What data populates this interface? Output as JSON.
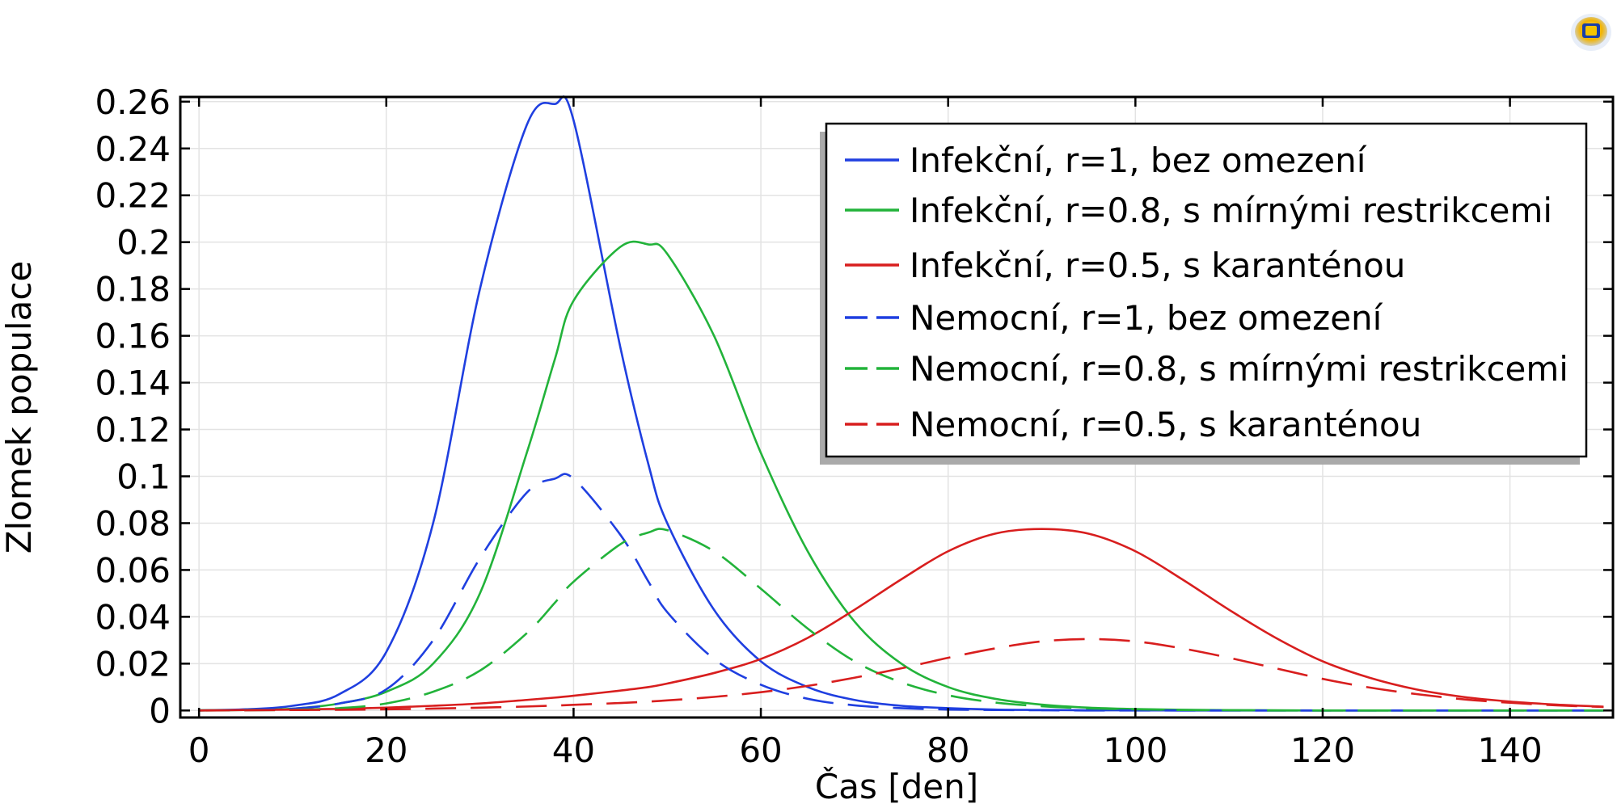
{
  "chart_data": {
    "type": "line",
    "title": "",
    "xlabel": "Čas [den]",
    "ylabel": "Zlomek populace",
    "xlim": [
      -2,
      151
    ],
    "ylim": [
      -0.003,
      0.262
    ],
    "x_ticks": [
      0,
      20,
      40,
      60,
      80,
      100,
      120,
      140
    ],
    "y_ticks": [
      0,
      0.02,
      0.04,
      0.06,
      0.08,
      0.1,
      0.12,
      0.14,
      0.16,
      0.18,
      0.2,
      0.22,
      0.24,
      0.26
    ],
    "x_tick_labels": [
      "0",
      "20",
      "40",
      "60",
      "80",
      "100",
      "120",
      "140"
    ],
    "y_tick_labels": [
      "0",
      "0.02",
      "0.04",
      "0.06",
      "0.08",
      "0.1",
      "0.12",
      "0.14",
      "0.16",
      "0.18",
      "0.2",
      "0.22",
      "0.24",
      "0.26"
    ],
    "grid": true,
    "legend_position": "top-right",
    "x": [
      0,
      5,
      10,
      15,
      20,
      25,
      30,
      35,
      38,
      40,
      45,
      48,
      50,
      55,
      60,
      65,
      70,
      75,
      80,
      85,
      90,
      95,
      100,
      105,
      110,
      115,
      120,
      125,
      130,
      135,
      140,
      145,
      150
    ],
    "series": [
      {
        "name": "Infekční, r=1, bez omezení",
        "color": "#1f3fe0",
        "dash": "solid",
        "values": [
          0.0001,
          0.0005,
          0.002,
          0.007,
          0.025,
          0.08,
          0.18,
          0.25,
          0.259,
          0.252,
          0.155,
          0.105,
          0.08,
          0.043,
          0.021,
          0.01,
          0.0045,
          0.002,
          0.001,
          0.0004,
          0.0002,
          0.0001,
          5e-05,
          0,
          0,
          0,
          0,
          0,
          0,
          0,
          0,
          0,
          0
        ]
      },
      {
        "name": "Infekční, r=0.8, s mírnými restrikcemi",
        "color": "#22b33a",
        "dash": "solid",
        "values": [
          0.0001,
          0.0002,
          0.0008,
          0.003,
          0.008,
          0.02,
          0.05,
          0.11,
          0.15,
          0.175,
          0.198,
          0.199,
          0.195,
          0.16,
          0.11,
          0.068,
          0.038,
          0.02,
          0.01,
          0.005,
          0.0025,
          0.0012,
          0.0006,
          0.0003,
          0.00015,
          0.0001,
          0,
          0,
          0,
          0,
          0,
          0,
          0
        ]
      },
      {
        "name": "Infekční, r=0.5, s karanténou",
        "color": "#d81e1e",
        "dash": "solid",
        "values": [
          0,
          0.0002,
          0.0004,
          0.0007,
          0.0012,
          0.002,
          0.003,
          0.0045,
          0.0055,
          0.0063,
          0.0085,
          0.01,
          0.0115,
          0.016,
          0.022,
          0.031,
          0.043,
          0.056,
          0.068,
          0.0755,
          0.0775,
          0.0755,
          0.068,
          0.056,
          0.043,
          0.031,
          0.021,
          0.014,
          0.009,
          0.0058,
          0.0038,
          0.0025,
          0.0016
        ]
      },
      {
        "name": "Nemocní, r=1, bez omezení",
        "color": "#1f3fe0",
        "dash": "dashed",
        "values": [
          0,
          0.0002,
          0.0008,
          0.003,
          0.009,
          0.03,
          0.065,
          0.093,
          0.099,
          0.099,
          0.075,
          0.055,
          0.042,
          0.022,
          0.011,
          0.005,
          0.0022,
          0.001,
          0.0004,
          0.0002,
          0.0001,
          0,
          0,
          0,
          0,
          0,
          0,
          0,
          0,
          0,
          0,
          0,
          0
        ]
      },
      {
        "name": "Nemocní, r=0.8, s mírnými restrikcemi",
        "color": "#22b33a",
        "dash": "dashed",
        "values": [
          0,
          0.0001,
          0.0003,
          0.001,
          0.003,
          0.008,
          0.017,
          0.033,
          0.046,
          0.055,
          0.071,
          0.076,
          0.077,
          0.068,
          0.052,
          0.035,
          0.021,
          0.012,
          0.0065,
          0.0034,
          0.0018,
          0.0009,
          0.0005,
          0.0002,
          0.0001,
          0,
          0,
          0,
          0,
          0,
          0,
          0,
          0
        ]
      },
      {
        "name": "Nemocní, r=0.5, s karanténou",
        "color": "#d81e1e",
        "dash": "dashed",
        "values": [
          0,
          0.0001,
          0.0002,
          0.0003,
          0.0005,
          0.0008,
          0.0012,
          0.0017,
          0.0021,
          0.0024,
          0.0032,
          0.0038,
          0.0043,
          0.0058,
          0.0078,
          0.0105,
          0.014,
          0.018,
          0.0225,
          0.0265,
          0.0295,
          0.0305,
          0.0295,
          0.0265,
          0.0225,
          0.018,
          0.0135,
          0.0098,
          0.007,
          0.0048,
          0.0033,
          0.0022,
          0.0015
        ]
      }
    ]
  },
  "logo": {
    "icon": "comsol-logo-icon"
  }
}
